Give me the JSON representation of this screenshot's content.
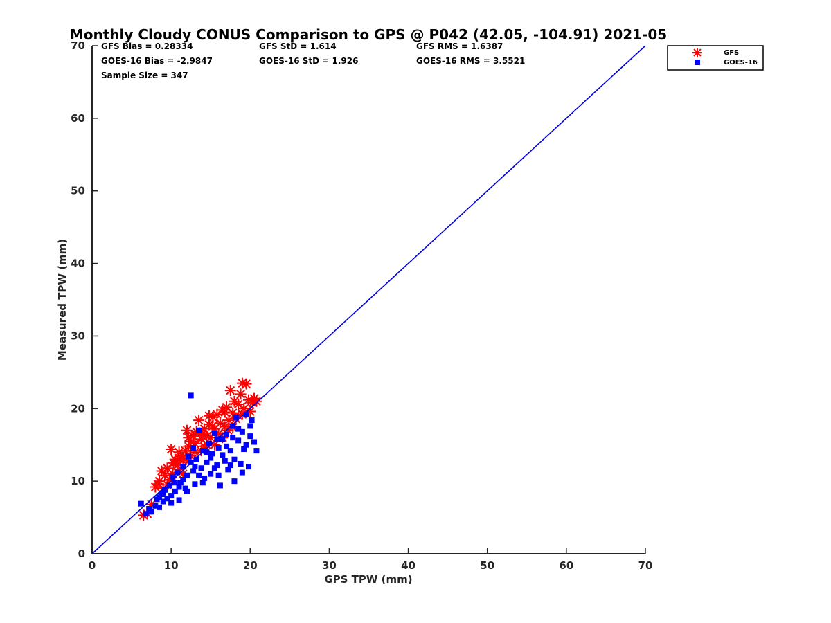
{
  "chart_data": {
    "type": "scatter",
    "title": "Monthly Cloudy CONUS Comparison to GPS @ P042 (42.05, -104.91) 2021-05",
    "xlabel": "GPS TPW (mm)",
    "ylabel": "Measured TPW (mm)",
    "xlim": [
      0,
      70
    ],
    "ylim": [
      0,
      70
    ],
    "xticks": [
      "0",
      "10",
      "20",
      "30",
      "40",
      "50",
      "60",
      "70"
    ],
    "yticks": [
      "0",
      "10",
      "20",
      "30",
      "40",
      "50",
      "60",
      "70"
    ],
    "grid": false,
    "legend_position": "top-right, outside plot",
    "stats": [
      [
        "GFS Bias = 0.28334",
        "GFS StD = 1.614",
        "GFS RMS = 1.6387"
      ],
      [
        "GOES-16 Bias = -2.9847",
        "GOES-16 StD = 1.926",
        "GOES-16 RMS = 3.5521"
      ],
      [
        "Sample Size = 347",
        "",
        ""
      ]
    ],
    "reference_line": {
      "type": "one-to-one",
      "x": [
        0,
        70
      ],
      "y": [
        0,
        70
      ],
      "color": "#0000dd"
    },
    "series": [
      {
        "name": "GFS",
        "marker": "asterisk",
        "color": "#ff0000",
        "points": [
          [
            6.5,
            5.3
          ],
          [
            7.0,
            5.5
          ],
          [
            7.5,
            6.8
          ],
          [
            8.0,
            9.2
          ],
          [
            8.3,
            9.6
          ],
          [
            8.5,
            10.0
          ],
          [
            8.8,
            11.4
          ],
          [
            9.0,
            9.0
          ],
          [
            9.2,
            10.8
          ],
          [
            9.5,
            9.5
          ],
          [
            9.8,
            10.2
          ],
          [
            10.0,
            14.4
          ],
          [
            10.2,
            11.0
          ],
          [
            10.3,
            12.5
          ],
          [
            10.5,
            13.0
          ],
          [
            10.8,
            12.2
          ],
          [
            11.0,
            14.0
          ],
          [
            11.2,
            13.4
          ],
          [
            11.5,
            12.8
          ],
          [
            11.8,
            14.2
          ],
          [
            12.0,
            17.0
          ],
          [
            12.2,
            14.8
          ],
          [
            12.5,
            15.5
          ],
          [
            12.8,
            16.2
          ],
          [
            13.0,
            14.0
          ],
          [
            13.2,
            16.8
          ],
          [
            13.5,
            18.4
          ],
          [
            13.8,
            15.8
          ],
          [
            14.0,
            16.5
          ],
          [
            14.2,
            17.2
          ],
          [
            14.5,
            15.0
          ],
          [
            14.8,
            17.8
          ],
          [
            15.0,
            16.0
          ],
          [
            15.3,
            18.8
          ],
          [
            15.5,
            17.2
          ],
          [
            15.8,
            19.2
          ],
          [
            16.0,
            16.5
          ],
          [
            16.2,
            18.0
          ],
          [
            16.5,
            19.8
          ],
          [
            16.8,
            17.5
          ],
          [
            17.0,
            20.2
          ],
          [
            17.3,
            18.4
          ],
          [
            17.5,
            22.5
          ],
          [
            17.8,
            19.4
          ],
          [
            18.0,
            21.0
          ],
          [
            18.2,
            18.6
          ],
          [
            18.5,
            20.6
          ],
          [
            18.8,
            22.0
          ],
          [
            19.0,
            23.5
          ],
          [
            19.2,
            20.0
          ],
          [
            19.5,
            23.4
          ],
          [
            19.8,
            21.2
          ],
          [
            20.0,
            19.6
          ],
          [
            20.3,
            20.8
          ],
          [
            20.5,
            21.4
          ],
          [
            20.8,
            21.0
          ],
          [
            11.5,
            11.0
          ],
          [
            12.5,
            13.5
          ],
          [
            13.8,
            14.2
          ],
          [
            14.5,
            16.2
          ],
          [
            15.5,
            15.0
          ],
          [
            16.5,
            16.0
          ],
          [
            17.2,
            17.0
          ],
          [
            9.5,
            11.8
          ],
          [
            10.8,
            12.8
          ],
          [
            12.2,
            16.0
          ],
          [
            14.8,
            19.0
          ],
          [
            16.8,
            19.5
          ],
          [
            18.5,
            19.0
          ],
          [
            13.0,
            15.2
          ],
          [
            15.2,
            17.6
          ],
          [
            17.8,
            17.4
          ],
          [
            11.0,
            11.6
          ],
          [
            12.0,
            13.2
          ],
          [
            19.0,
            19.2
          ],
          [
            14.2,
            14.8
          ]
        ]
      },
      {
        "name": "GOES-16",
        "marker": "square",
        "color": "#0000ff",
        "points": [
          [
            6.2,
            6.9
          ],
          [
            6.8,
            5.5
          ],
          [
            7.2,
            6.2
          ],
          [
            7.5,
            5.8
          ],
          [
            8.0,
            6.6
          ],
          [
            8.2,
            7.5
          ],
          [
            8.5,
            6.4
          ],
          [
            8.8,
            8.2
          ],
          [
            9.0,
            7.2
          ],
          [
            9.2,
            8.8
          ],
          [
            9.5,
            7.6
          ],
          [
            9.8,
            9.4
          ],
          [
            10.0,
            8.0
          ],
          [
            10.2,
            10.6
          ],
          [
            10.5,
            8.6
          ],
          [
            10.8,
            11.2
          ],
          [
            11.0,
            7.4
          ],
          [
            11.2,
            9.8
          ],
          [
            11.5,
            12.0
          ],
          [
            11.8,
            9.0
          ],
          [
            12.0,
            10.8
          ],
          [
            12.2,
            13.4
          ],
          [
            12.5,
            21.8
          ],
          [
            12.8,
            11.4
          ],
          [
            13.0,
            9.6
          ],
          [
            13.2,
            13.0
          ],
          [
            13.5,
            17.0
          ],
          [
            13.8,
            11.8
          ],
          [
            14.0,
            14.2
          ],
          [
            14.2,
            10.4
          ],
          [
            14.5,
            12.6
          ],
          [
            14.8,
            15.2
          ],
          [
            15.0,
            11.0
          ],
          [
            15.2,
            13.8
          ],
          [
            15.5,
            16.6
          ],
          [
            15.8,
            12.2
          ],
          [
            16.0,
            14.6
          ],
          [
            16.2,
            9.4
          ],
          [
            16.5,
            15.8
          ],
          [
            16.8,
            12.8
          ],
          [
            17.0,
            16.4
          ],
          [
            17.2,
            11.6
          ],
          [
            17.5,
            14.2
          ],
          [
            17.8,
            17.6
          ],
          [
            18.0,
            13.0
          ],
          [
            18.2,
            18.8
          ],
          [
            18.5,
            15.6
          ],
          [
            18.8,
            12.4
          ],
          [
            19.0,
            16.8
          ],
          [
            19.2,
            14.4
          ],
          [
            19.5,
            19.2
          ],
          [
            19.8,
            12.0
          ],
          [
            20.0,
            16.2
          ],
          [
            20.2,
            18.4
          ],
          [
            20.5,
            15.4
          ],
          [
            20.8,
            14.2
          ],
          [
            10.5,
            9.8
          ],
          [
            11.5,
            10.2
          ],
          [
            12.5,
            12.6
          ],
          [
            13.5,
            10.8
          ],
          [
            14.5,
            14.0
          ],
          [
            15.5,
            11.8
          ],
          [
            16.5,
            13.6
          ],
          [
            17.5,
            12.2
          ],
          [
            18.5,
            17.2
          ],
          [
            19.5,
            15.0
          ],
          [
            9.0,
            8.4
          ],
          [
            10.0,
            7.0
          ],
          [
            11.0,
            9.2
          ],
          [
            12.0,
            8.6
          ],
          [
            13.0,
            12.0
          ],
          [
            14.0,
            9.8
          ],
          [
            15.0,
            13.2
          ],
          [
            16.0,
            10.8
          ],
          [
            17.0,
            14.8
          ],
          [
            18.0,
            10.0
          ],
          [
            19.0,
            11.2
          ],
          [
            20.0,
            17.6
          ],
          [
            8.5,
            7.8
          ],
          [
            12.8,
            14.6
          ],
          [
            15.8,
            15.8
          ],
          [
            17.8,
            16.0
          ]
        ]
      }
    ]
  }
}
